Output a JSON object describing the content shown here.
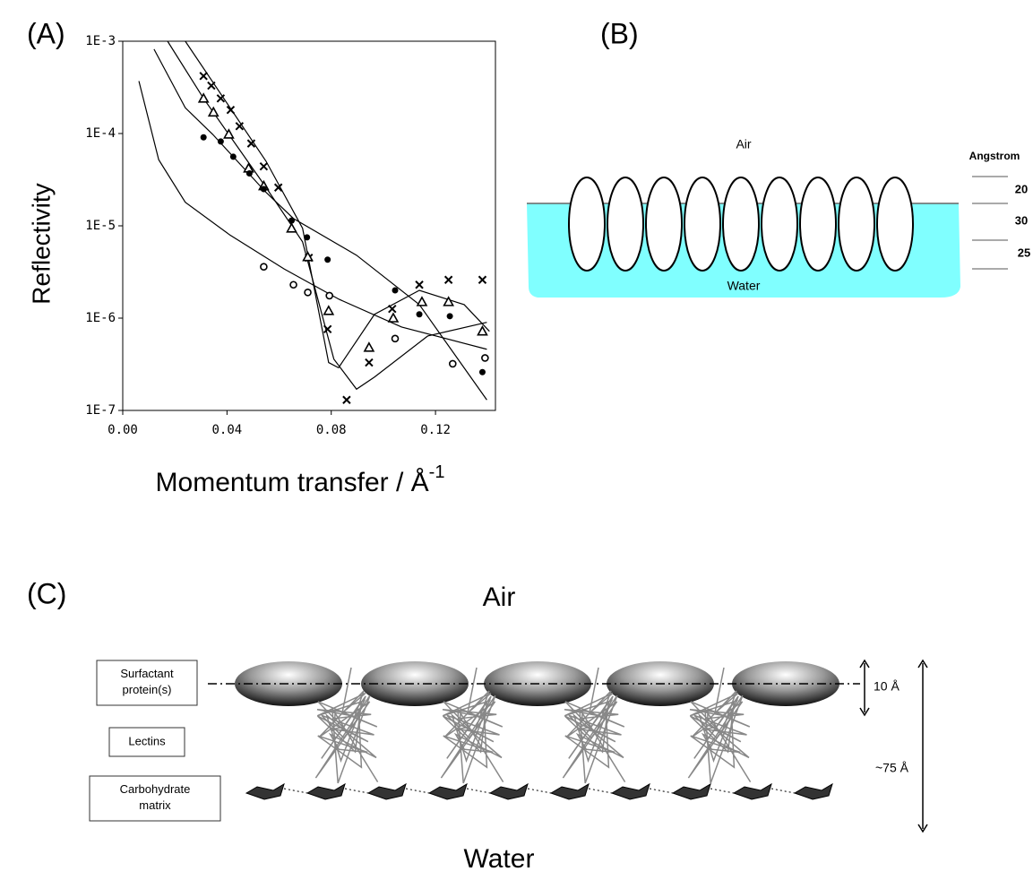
{
  "panel_labels": [
    "(A)",
    "(B)",
    "(C)"
  ],
  "chart_data": {
    "type": "scatter",
    "y_label": "Reflectivity",
    "x_label": "Momentum transfer  / Å",
    "x_label_sup": "-1",
    "log_y": true,
    "color": "#000000",
    "xlim": [
      0,
      0.143
    ],
    "ylim": [
      1e-07,
      0.001
    ],
    "xticks": [
      {
        "value": 0,
        "label": "0.00"
      },
      {
        "value": 0.04,
        "label": "0.04"
      },
      {
        "value": 0.08,
        "label": "0.08"
      },
      {
        "value": 0.12,
        "label": "0.12"
      }
    ],
    "yticks": [
      {
        "value": 1e-07,
        "label": "1E-7"
      },
      {
        "value": 1e-06,
        "label": "1E-6"
      },
      {
        "value": 1e-05,
        "label": "1E-5"
      },
      {
        "value": 0.0001,
        "label": "1E-4"
      },
      {
        "value": 0.001,
        "label": "1E-3"
      }
    ],
    "series": [
      {
        "marker": "cross",
        "x": [
          0.031,
          0.034,
          0.0376,
          0.0414,
          0.0448,
          0.0493,
          0.0541,
          0.0597,
          0.0714,
          0.0786,
          0.0859,
          0.0945,
          0.1034,
          0.1138,
          0.125,
          0.138
        ],
        "values": [
          0.00042,
          0.00033,
          0.00024,
          0.00018,
          0.00012,
          7.8e-05,
          4.4e-05,
          2.6e-05,
          4.5e-06,
          7.6e-07,
          1.3e-07,
          3.3e-07,
          1.26e-06,
          2.3e-06,
          2.6e-06,
          2.6e-06
        ]
      },
      {
        "marker": "triangle",
        "x": [
          0.031,
          0.0348,
          0.0407,
          0.0483,
          0.0541,
          0.0648,
          0.071,
          0.079,
          0.0945,
          0.1038,
          0.1148,
          0.125,
          0.138
        ],
        "values": [
          0.00024,
          0.00017,
          9.8e-05,
          4.2e-05,
          2.7e-05,
          9.4e-06,
          4.6e-06,
          1.2e-06,
          4.8e-07,
          1e-06,
          1.5e-06,
          1.5e-06,
          7.2e-07
        ]
      },
      {
        "marker": "dot",
        "x": [
          0.031,
          0.0376,
          0.0424,
          0.0486,
          0.0541,
          0.0648,
          0.0707,
          0.0786,
          0.1045,
          0.1138,
          0.1255,
          0.138
        ],
        "values": [
          9.1e-05,
          8.2e-05,
          5.6e-05,
          3.7e-05,
          2.5e-05,
          1.14e-05,
          7.5e-06,
          4.3e-06,
          2e-06,
          1.1e-06,
          1.05e-06,
          2.6e-07
        ]
      },
      {
        "marker": "ring",
        "x": [
          0.0541,
          0.0655,
          0.071,
          0.0793,
          0.1045,
          0.1266,
          0.139
        ],
        "values": [
          3.6e-06,
          2.3e-06,
          1.9e-06,
          1.75e-06,
          6e-07,
          3.2e-07,
          3.7e-07
        ]
      }
    ],
    "fits": [
      {
        "x": [
          0.0062,
          0.0138,
          0.024,
          0.041,
          0.062,
          0.083,
          0.107,
          0.1397
        ],
        "values": [
          0.00037,
          5.2e-05,
          1.8e-05,
          8e-06,
          3.4e-06,
          1.6e-06,
          8e-07,
          4.6e-07
        ]
      },
      {
        "x": [
          0.012,
          0.024,
          0.0345,
          0.055,
          0.0655,
          0.0897,
          0.1138,
          0.1397
        ],
        "values": [
          0.00082,
          0.00019,
          9.8e-05,
          2.3e-05,
          1.2e-05,
          4.8e-06,
          1.4e-06,
          1.3e-07
        ]
      },
      {
        "x": [
          0.0172,
          0.031,
          0.055,
          0.069,
          0.081,
          0.0897,
          0.0966,
          0.117,
          0.1397
        ],
        "values": [
          0.001,
          0.00024,
          2.6e-05,
          6.7e-06,
          3.6e-07,
          1.7e-07,
          2.3e-07,
          6.4e-07,
          9e-07
        ]
      },
      {
        "x": [
          0.024,
          0.055,
          0.069,
          0.079,
          0.0828,
          0.0966,
          0.1138,
          0.131,
          0.1407
        ],
        "values": [
          0.001,
          5e-05,
          9.4e-06,
          3.3e-07,
          2.9e-07,
          1.1e-06,
          2e-06,
          1.4e-06,
          7.2e-07
        ]
      }
    ]
  },
  "panel_b": {
    "air": "Air",
    "water": "Water",
    "scale_title": "Angstrom",
    "scale_values": [
      20,
      30,
      25
    ]
  },
  "panel_c": {
    "air": "Air",
    "water": "Water",
    "labels": [
      "Surfactant protein(s)",
      "Lectins",
      "Carbohydrate matrix"
    ],
    "dim_small": "10 Å",
    "dim_large": "~75 Å"
  }
}
